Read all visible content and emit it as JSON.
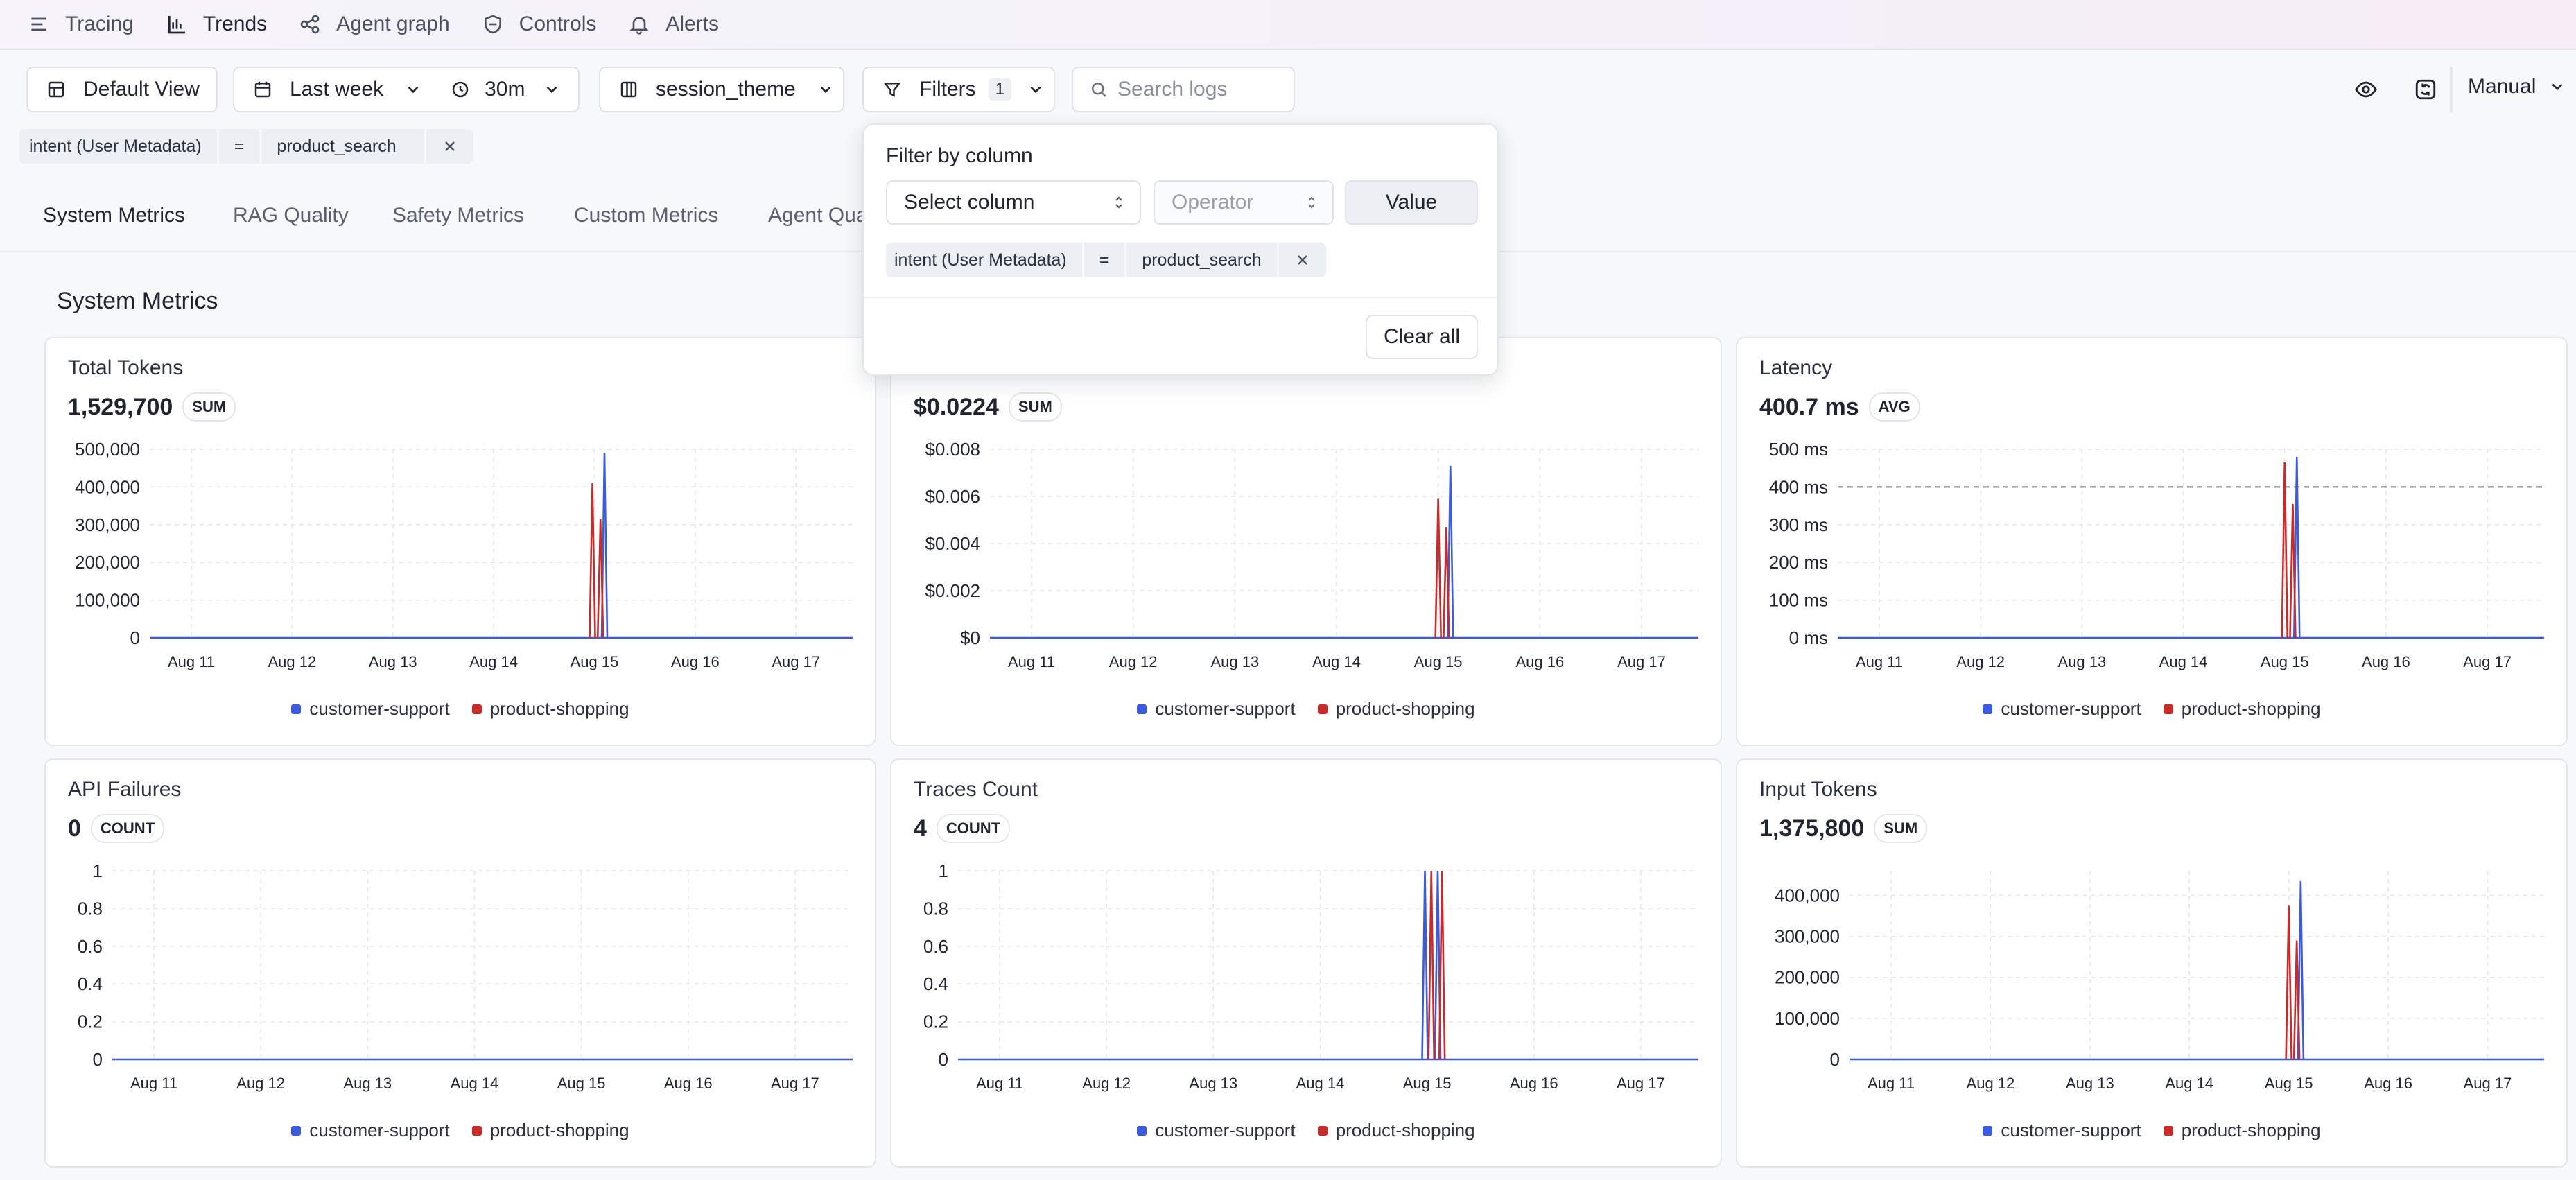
{
  "nav": {
    "items": [
      {
        "label": "Tracing",
        "icon": "menu-lines-icon"
      },
      {
        "label": "Trends",
        "icon": "bar-chart-icon"
      },
      {
        "label": "Agent graph",
        "icon": "graph-nodes-icon"
      },
      {
        "label": "Controls",
        "icon": "shield-icon"
      },
      {
        "label": "Alerts",
        "icon": "bell-icon"
      }
    ],
    "active": "Trends"
  },
  "toolbar": {
    "default_view": "Default View",
    "date_range": "Last week",
    "interval": "30m",
    "group_by": "session_theme",
    "filters_label": "Filters",
    "filters_count": "1",
    "search_placeholder": "Search logs",
    "refresh_mode": "Manual"
  },
  "active_filter": {
    "column": "intent (User Metadata)",
    "operator": "=",
    "value": "product_search"
  },
  "tabs": [
    "System Metrics",
    "RAG Quality",
    "Safety Metrics",
    "Custom Metrics",
    "Agent Qua"
  ],
  "section_title": "System Metrics",
  "filter_popover": {
    "title": "Filter by column",
    "column_placeholder": "Select column",
    "operator_placeholder": "Operator",
    "value_label": "Value",
    "clear_all": "Clear all",
    "filter": {
      "column": "intent (User Metadata)",
      "operator": "=",
      "value": "product_search"
    }
  },
  "legend": [
    {
      "name": "customer-support",
      "color": "#3b5bdb"
    },
    {
      "name": "product-shopping",
      "color": "#c92a2a"
    }
  ],
  "cards": [
    {
      "title": "Total Tokens",
      "value": "1,529,700",
      "agg": "SUM"
    },
    {
      "title": "",
      "value": "$0.0224",
      "agg": "SUM"
    },
    {
      "title": "Latency",
      "value": "400.7 ms",
      "agg": "AVG"
    },
    {
      "title": "API Failures",
      "value": "0",
      "agg": "COUNT"
    },
    {
      "title": "Traces Count",
      "value": "4",
      "agg": "COUNT"
    },
    {
      "title": "Input Tokens",
      "value": "1,375,800",
      "agg": "SUM"
    }
  ],
  "chart_data": [
    {
      "type": "line",
      "title": "Total Tokens",
      "x": [
        "Aug 11",
        "Aug 12",
        "Aug 13",
        "Aug 14",
        "Aug 15",
        "Aug 16",
        "Aug 17"
      ],
      "yticks": [
        "0",
        "100,000",
        "200,000",
        "300,000",
        "400,000",
        "500,000"
      ],
      "ylim": [
        0,
        500000
      ],
      "series": [
        {
          "name": "customer-support",
          "spikes": [
            {
              "day": 4.1,
              "value": 490000
            }
          ]
        },
        {
          "name": "product-shopping",
          "spikes": [
            {
              "day": 3.98,
              "value": 410000
            },
            {
              "day": 4.06,
              "value": 315000
            }
          ]
        }
      ]
    },
    {
      "type": "line",
      "title": "",
      "x": [
        "Aug 11",
        "Aug 12",
        "Aug 13",
        "Aug 14",
        "Aug 15",
        "Aug 16",
        "Aug 17"
      ],
      "yticks": [
        "$0",
        "$0.002",
        "$0.004",
        "$0.006",
        "$0.008"
      ],
      "ylim": [
        0,
        0.008
      ],
      "series": [
        {
          "name": "customer-support",
          "spikes": [
            {
              "day": 4.12,
              "value": 0.0073
            }
          ]
        },
        {
          "name": "product-shopping",
          "spikes": [
            {
              "day": 4.0,
              "value": 0.0059
            },
            {
              "day": 4.08,
              "value": 0.0047
            }
          ]
        }
      ]
    },
    {
      "type": "line",
      "title": "Latency",
      "x": [
        "Aug 11",
        "Aug 12",
        "Aug 13",
        "Aug 14",
        "Aug 15",
        "Aug 16",
        "Aug 17"
      ],
      "yticks": [
        "0 ms",
        "100 ms",
        "200 ms",
        "300 ms",
        "400 ms",
        "500 ms"
      ],
      "ylim": [
        0,
        500
      ],
      "reference_line": 400,
      "series": [
        {
          "name": "customer-support",
          "spikes": [
            {
              "day": 4.12,
              "value": 480
            }
          ]
        },
        {
          "name": "product-shopping",
          "spikes": [
            {
              "day": 4.0,
              "value": 465
            },
            {
              "day": 4.08,
              "value": 355
            }
          ]
        }
      ]
    },
    {
      "type": "line",
      "title": "API Failures",
      "x": [
        "Aug 11",
        "Aug 12",
        "Aug 13",
        "Aug 14",
        "Aug 15",
        "Aug 16",
        "Aug 17"
      ],
      "yticks": [
        "0",
        "0.2",
        "0.4",
        "0.6",
        "0.8",
        "1"
      ],
      "ylim": [
        0,
        1
      ],
      "series": [
        {
          "name": "customer-support",
          "spikes": []
        },
        {
          "name": "product-shopping",
          "spikes": []
        }
      ]
    },
    {
      "type": "line",
      "title": "Traces Count",
      "x": [
        "Aug 11",
        "Aug 12",
        "Aug 13",
        "Aug 14",
        "Aug 15",
        "Aug 16",
        "Aug 17"
      ],
      "yticks": [
        "0",
        "0.2",
        "0.4",
        "0.6",
        "0.8",
        "1"
      ],
      "ylim": [
        0,
        1
      ],
      "series": [
        {
          "name": "customer-support",
          "spikes": [
            {
              "day": 3.98,
              "value": 1
            },
            {
              "day": 4.1,
              "value": 1
            }
          ]
        },
        {
          "name": "product-shopping",
          "spikes": [
            {
              "day": 4.04,
              "value": 1
            },
            {
              "day": 4.14,
              "value": 1
            }
          ]
        }
      ]
    },
    {
      "type": "line",
      "title": "Input Tokens",
      "x": [
        "Aug 11",
        "Aug 12",
        "Aug 13",
        "Aug 14",
        "Aug 15",
        "Aug 16",
        "Aug 17"
      ],
      "yticks": [
        "0",
        "100,000",
        "200,000",
        "300,000",
        "400,000"
      ],
      "ylim": [
        0,
        460000
      ],
      "series": [
        {
          "name": "customer-support",
          "spikes": [
            {
              "day": 4.12,
              "value": 435000
            }
          ]
        },
        {
          "name": "product-shopping",
          "spikes": [
            {
              "day": 4.0,
              "value": 375000
            },
            {
              "day": 4.08,
              "value": 290000
            }
          ]
        }
      ]
    }
  ]
}
